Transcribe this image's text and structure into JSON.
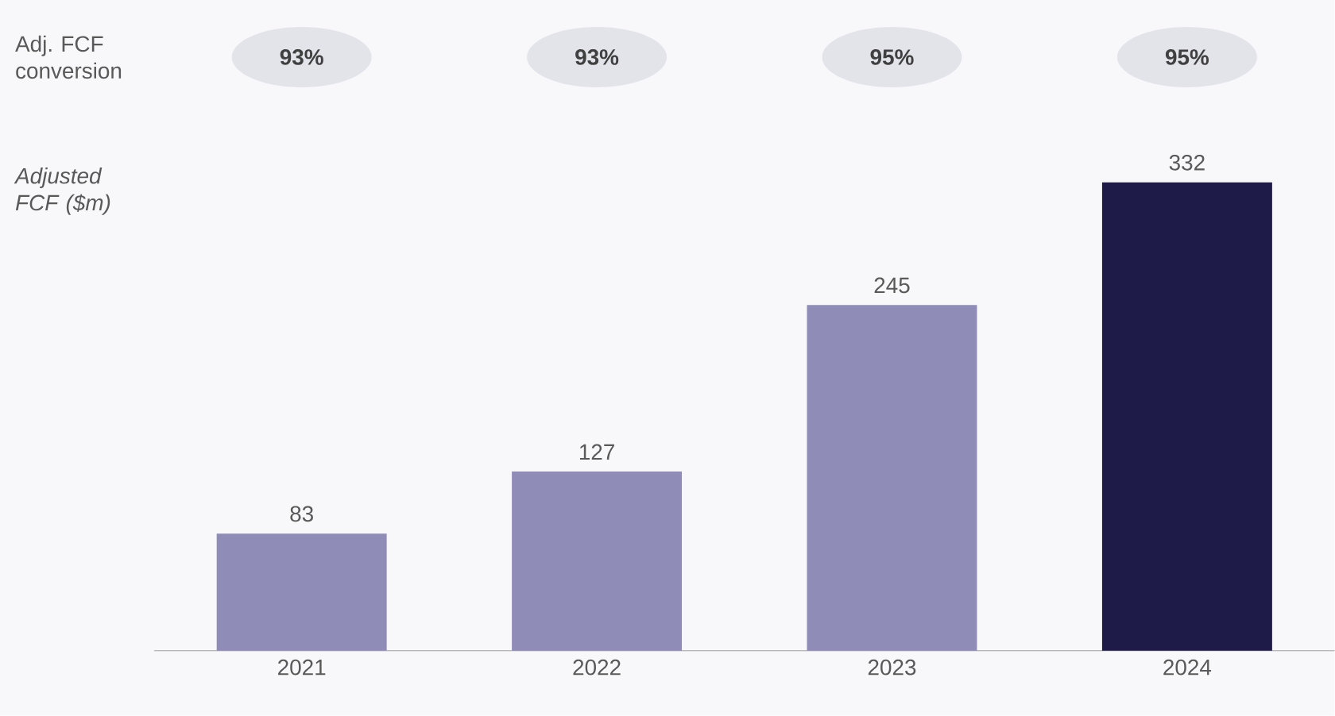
{
  "chart_data": {
    "type": "bar",
    "ylabel": "*Adjusted FCF ($m)*",
    "categories": [
      "2021",
      "2022",
      "2023",
      "2024"
    ],
    "values": [
      83,
      127,
      245,
      332
    ],
    "colors": [
      "#8f8cb8",
      "#8f8cb8",
      "#8f8cb8",
      "#1e1b48"
    ],
    "data_labels": true,
    "annotations": [
      "Adj. FCF conversion",
      "93%",
      "93%",
      "95%",
      "95%"
    ]
  }
}
